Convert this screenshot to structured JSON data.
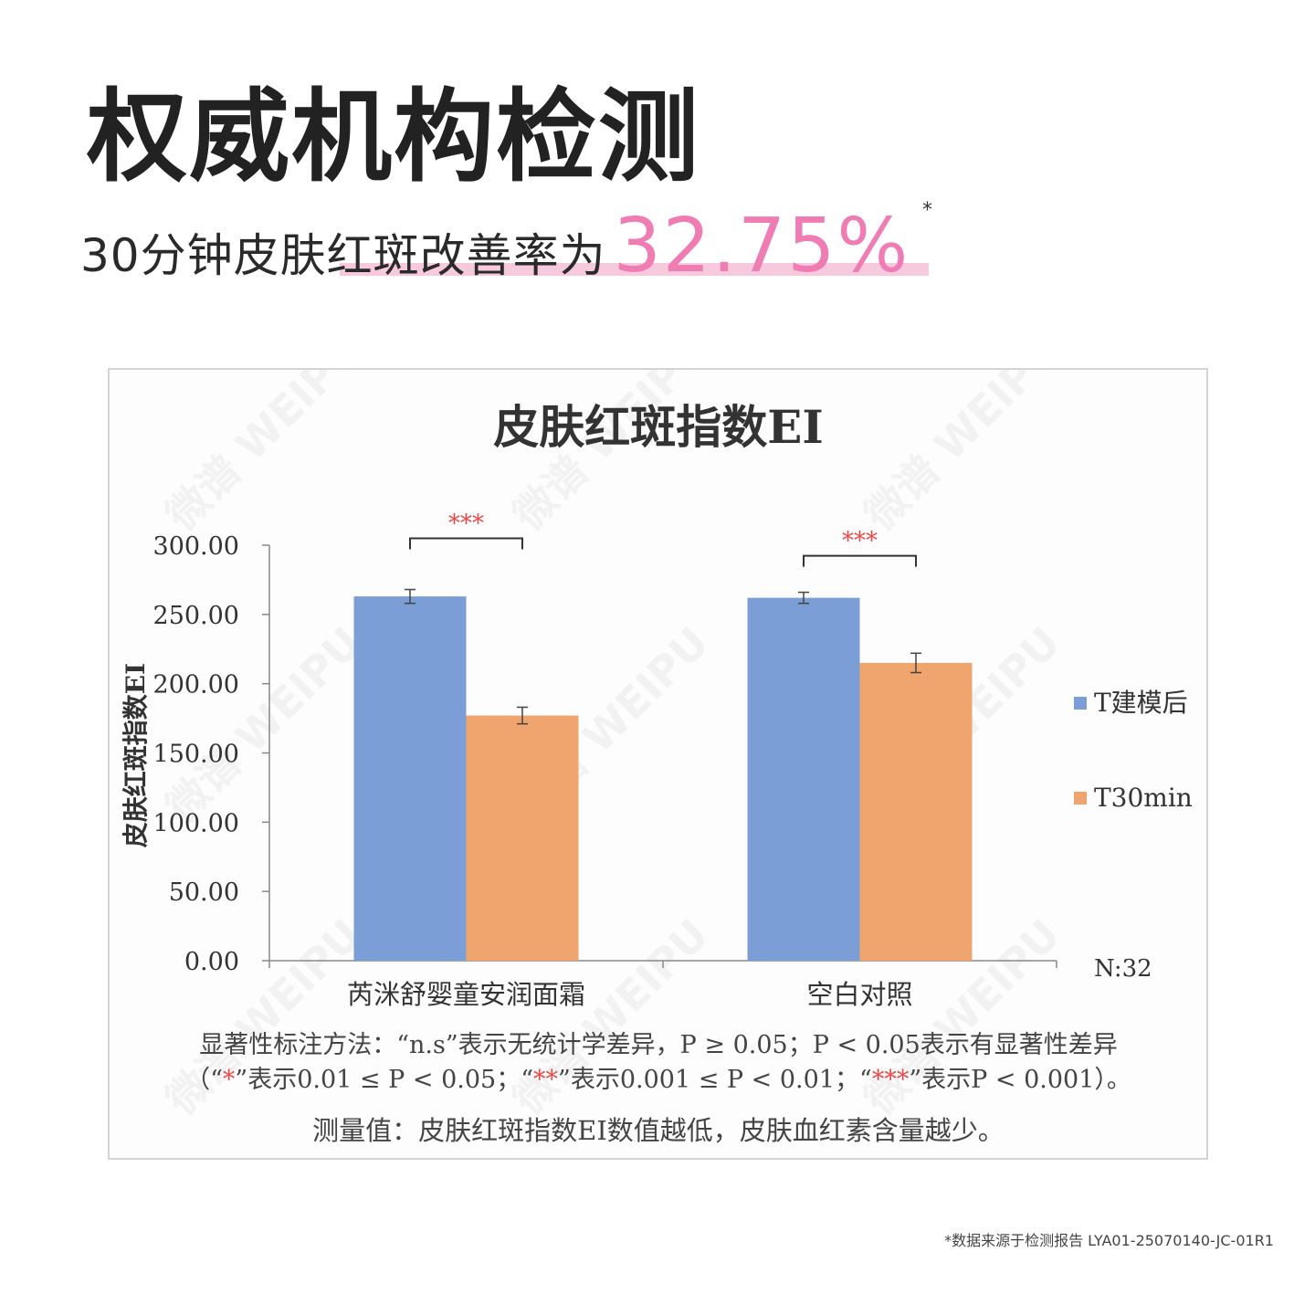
{
  "header": {
    "headline": "权威机构检测",
    "subline_text": "30分钟皮肤红斑改善率为",
    "subline_value": "32.75%",
    "subline_star": "*"
  },
  "colors": {
    "accent_pink": "#f07cb4",
    "highlight": "#f7c9dc",
    "bar_blue": "#7b9ed6",
    "bar_orange": "#f0a56f",
    "significance_red": "#e84a4a"
  },
  "chart_data": {
    "type": "bar",
    "title": "皮肤红斑指数EI",
    "ylabel": "皮肤红斑指数EI",
    "xlabel": "",
    "ylim": [
      0,
      300
    ],
    "y_ticks": [
      "0.00",
      "50.00",
      "100.00",
      "150.00",
      "200.00",
      "250.00",
      "300.00"
    ],
    "categories": [
      "芮洣舒婴童安润面霜",
      "空白对照"
    ],
    "series": [
      {
        "name": "T建模后",
        "color": "#7b9ed6",
        "values": [
          263,
          262
        ],
        "errors": [
          5,
          4
        ]
      },
      {
        "name": "T30min",
        "color": "#f0a56f",
        "values": [
          177,
          215
        ],
        "errors": [
          6,
          7
        ]
      }
    ],
    "significance": [
      "***",
      "***"
    ],
    "legend_position": "right",
    "annotation": "N:32",
    "notes": [
      "显著性标注方法：“n.s”表示无统计学差异，P ≥ 0.05；P < 0.05表示有显著性差异",
      "（“*”表示0.01 ≤ P < 0.05；“**”表示0.001 ≤ P < 0.01；“***”表示P < 0.001）。",
      "测量值：皮肤红斑指数EI数值越低，皮肤血红素含量越少。"
    ],
    "watermark": "微谱 WEIPU"
  },
  "footer": {
    "source": "*数据来源于检测报告 LYA01-25070140-JC-01R1"
  }
}
